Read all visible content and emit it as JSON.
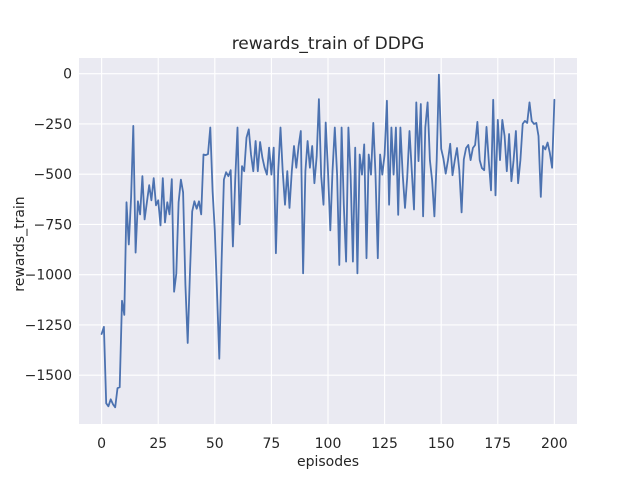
{
  "figure": {
    "title": "rewards_train of DDPG",
    "xlabel": "episodes",
    "ylabel": "rewards_train",
    "background_color": "#ffffff",
    "plot_background_color": "#eaeaf2",
    "grid_color": "#ffffff",
    "line_color": "#4c72b0",
    "text_color": "#262626"
  },
  "chart_data": {
    "type": "line",
    "title": "rewards_train of DDPG",
    "xlabel": "episodes",
    "ylabel": "rewards_train",
    "grid": true,
    "legend": false,
    "x_ticks": [
      0,
      25,
      50,
      75,
      100,
      125,
      150,
      175,
      200
    ],
    "y_ticks": [
      0,
      -250,
      -500,
      -750,
      -1000,
      -1250,
      -1500
    ],
    "xlim": [
      -10,
      210
    ],
    "ylim": [
      -1743,
      78
    ],
    "x_start": 0,
    "x_step": 1,
    "series": [
      {
        "name": "rewards_train",
        "color": "#4c72b0",
        "values": [
          -1295,
          -1260,
          -1640,
          -1655,
          -1620,
          -1645,
          -1660,
          -1565,
          -1560,
          -1130,
          -1200,
          -640,
          -850,
          -615,
          -260,
          -890,
          -635,
          -700,
          -510,
          -725,
          -640,
          -555,
          -630,
          -520,
          -655,
          -630,
          -755,
          -520,
          -740,
          -640,
          -700,
          -525,
          -1085,
          -995,
          -640,
          -527,
          -590,
          -1050,
          -1340,
          -1000,
          -685,
          -635,
          -672,
          -635,
          -700,
          -402,
          -405,
          -400,
          -268,
          -585,
          -780,
          -1100,
          -1418,
          -933,
          -527,
          -490,
          -510,
          -480,
          -860,
          -530,
          -268,
          -750,
          -460,
          -485,
          -318,
          -277,
          -402,
          -485,
          -335,
          -485,
          -340,
          -418,
          -468,
          -502,
          -368,
          -502,
          -368,
          -893,
          -485,
          -268,
          -485,
          -652,
          -485,
          -668,
          -485,
          -360,
          -468,
          -360,
          -285,
          -993,
          -485,
          -335,
          -468,
          -360,
          -545,
          -410,
          -127,
          -510,
          -652,
          -243,
          -485,
          -780,
          -485,
          -268,
          -502,
          -952,
          -268,
          -652,
          -935,
          -268,
          -502,
          -935,
          -368,
          -993,
          -402,
          -502,
          -352,
          -918,
          -402,
          -502,
          -245,
          -502,
          -918,
          -402,
          -502,
          -402,
          -135,
          -652,
          -268,
          -502,
          -268,
          -702,
          -268,
          -502,
          -668,
          -518,
          -285,
          -485,
          -676,
          -143,
          -435,
          -151,
          -710,
          -268,
          -143,
          -430,
          -530,
          -710,
          -430,
          -5,
          -374,
          -422,
          -497,
          -430,
          -349,
          -505,
          -430,
          -370,
          -480,
          -690,
          -427,
          -370,
          -355,
          -430,
          -370,
          -355,
          -240,
          -430,
          -470,
          -480,
          -265,
          -430,
          -580,
          -130,
          -605,
          -230,
          -430,
          -230,
          -310,
          -485,
          -300,
          -535,
          -430,
          -285,
          -545,
          -430,
          -250,
          -235,
          -245,
          -143,
          -235,
          -250,
          -245,
          -310,
          -613,
          -360,
          -377,
          -343,
          -393,
          -468,
          -130
        ]
      }
    ]
  }
}
